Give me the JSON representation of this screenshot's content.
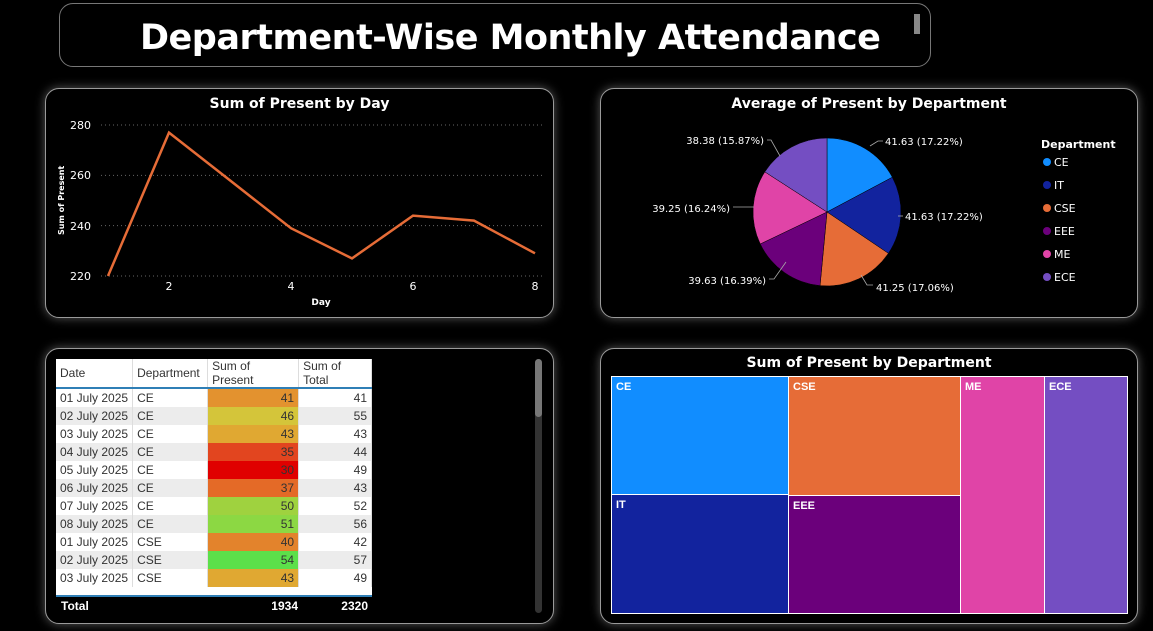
{
  "page": {
    "title": "Department-Wise Monthly Attendance"
  },
  "line_chart": {
    "title": "Sum of Present by Day",
    "xlabel": "Day",
    "ylabel": "Sum of Present",
    "y_ticks": [
      "280",
      "260",
      "240",
      "220"
    ],
    "x_ticks": [
      "2",
      "4",
      "6",
      "8"
    ]
  },
  "pie_chart": {
    "title": "Average of Present by Department",
    "legend_title": "Department",
    "slices": [
      {
        "label": "41.63 (17.22%)",
        "name": "CE",
        "color": "#118dff"
      },
      {
        "label": "41.63 (17.22%)",
        "name": "IT",
        "color": "#12239e"
      },
      {
        "label": "41.25 (17.06%)",
        "name": "CSE",
        "color": "#e66c37"
      },
      {
        "label": "39.63 (16.39%)",
        "name": "EEE",
        "color": "#6b007b"
      },
      {
        "label": "39.25 (16.24%)",
        "name": "ME",
        "color": "#e044a7"
      },
      {
        "label": "38.38 (15.87%)",
        "name": "ECE",
        "color": "#744ec2"
      }
    ]
  },
  "table": {
    "headers": [
      "Date",
      "Department",
      "Sum of Present",
      "Sum of Total"
    ],
    "rows": [
      {
        "date": "01 July 2025",
        "dept": "CE",
        "present": "41",
        "total": "41",
        "color": "#e3922f"
      },
      {
        "date": "02 July 2025",
        "dept": "CE",
        "present": "46",
        "total": "55",
        "color": "#d4c53a"
      },
      {
        "date": "03 July 2025",
        "dept": "CE",
        "present": "43",
        "total": "43",
        "color": "#e0a832"
      },
      {
        "date": "04 July 2025",
        "dept": "CE",
        "present": "35",
        "total": "44",
        "color": "#e2451f"
      },
      {
        "date": "05 July 2025",
        "dept": "CE",
        "present": "30",
        "total": "49",
        "color": "#e00000"
      },
      {
        "date": "06 July 2025",
        "dept": "CE",
        "present": "37",
        "total": "43",
        "color": "#e46a27"
      },
      {
        "date": "07 July 2025",
        "dept": "CE",
        "present": "50",
        "total": "52",
        "color": "#9fd23f"
      },
      {
        "date": "08 July 2025",
        "dept": "CE",
        "present": "51",
        "total": "56",
        "color": "#8cd843"
      },
      {
        "date": "01 July 2025",
        "dept": "CSE",
        "present": "40",
        "total": "42",
        "color": "#e3832c"
      },
      {
        "date": "02 July 2025",
        "dept": "CSE",
        "present": "54",
        "total": "57",
        "color": "#5ce04a"
      },
      {
        "date": "03 July 2025",
        "dept": "CSE",
        "present": "43",
        "total": "49",
        "color": "#e0a832"
      }
    ],
    "footer": {
      "label": "Total",
      "present": "1934",
      "total": "2320"
    }
  },
  "treemap": {
    "title": "Sum of Present by Department",
    "tiles": [
      {
        "name": "CE",
        "color": "#118dff"
      },
      {
        "name": "CSE",
        "color": "#e66c37"
      },
      {
        "name": "ME",
        "color": "#e044a7"
      },
      {
        "name": "ECE",
        "color": "#744ec2"
      },
      {
        "name": "IT",
        "color": "#12239e"
      },
      {
        "name": "EEE",
        "color": "#6b007b"
      }
    ]
  },
  "chart_data": [
    {
      "type": "line",
      "title": "Sum of Present by Day",
      "xlabel": "Day",
      "ylabel": "Sum of Present",
      "x": [
        1,
        2,
        3,
        4,
        5,
        6,
        7,
        8
      ],
      "series": [
        {
          "values": [
            220,
            277,
            258,
            239,
            227,
            244,
            242,
            229
          ],
          "color": "#e66c37"
        }
      ],
      "xlim": [
        1,
        8
      ],
      "ylim": [
        220,
        280
      ],
      "grid": true
    },
    {
      "type": "pie",
      "title": "Average of Present by Department",
      "categories": [
        "CE",
        "IT",
        "CSE",
        "EEE",
        "ME",
        "ECE"
      ],
      "values": [
        41.63,
        41.63,
        41.25,
        39.63,
        39.25,
        38.38
      ],
      "legend_placement": "right"
    },
    {
      "type": "treemap",
      "title": "Sum of Present by Department",
      "categories": [
        "CE",
        "IT",
        "CSE",
        "EEE",
        "ME",
        "ECE"
      ],
      "values": [
        333,
        333,
        330,
        317,
        314,
        307
      ]
    }
  ]
}
